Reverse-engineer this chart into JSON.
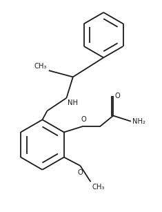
{
  "bg_color": "#ffffff",
  "line_color": "#1a1a1a",
  "line_width": 1.3,
  "font_size": 7.2,
  "fig_width": 2.35,
  "fig_height": 3.07,
  "dpi": 100,
  "xlim": [
    0.0,
    10.0
  ],
  "ylim": [
    0.0,
    13.0
  ]
}
